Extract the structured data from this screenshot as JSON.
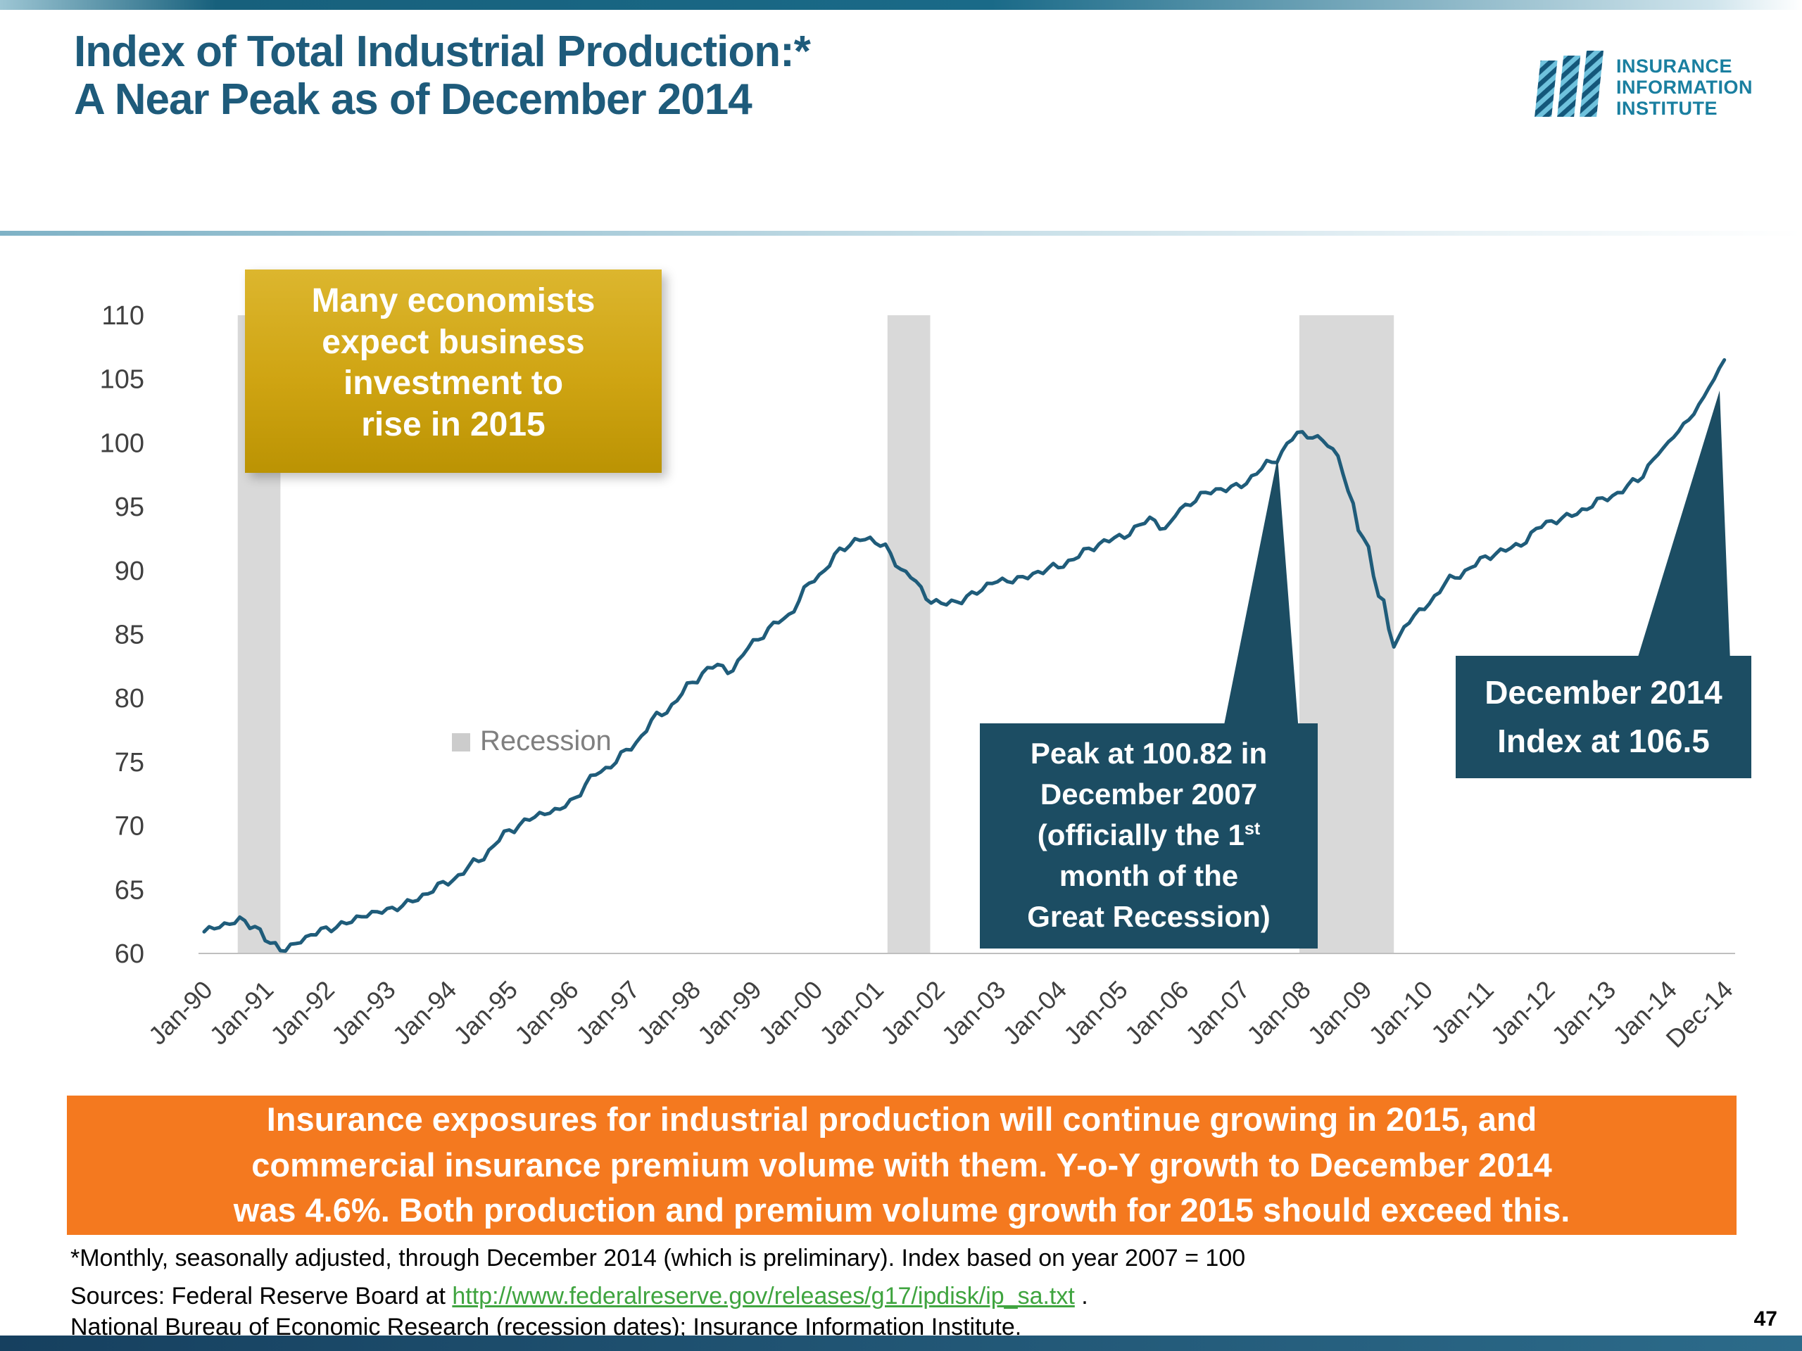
{
  "slide": {
    "title_line1": "Index of Total Industrial Production:*",
    "title_line2": "A Near Peak as of December 2014",
    "page_number": "47"
  },
  "logo": {
    "line1": "INSURANCE",
    "line2": "INFORMATION",
    "line3": "INSTITUTE"
  },
  "callouts": {
    "economists": {
      "lines": [
        "Many economists",
        "expect business",
        "investment to",
        "rise in 2015"
      ]
    },
    "peak": {
      "line1": "Peak at 100.82 in",
      "line2": "December 2007",
      "line3_pre": "(officially  the 1",
      "line3_sup": "st",
      "line4": "month of the",
      "line5": "Great Recession)"
    },
    "dec2014": {
      "line1": "December 2014",
      "line2": "Index at 106.5"
    }
  },
  "banner": {
    "lines": [
      "Insurance exposures for industrial production will continue growing in 2015, and",
      "commercial insurance premium volume with them. Y-o-Y growth to December 2014",
      "was 4.6%. Both production and premium volume growth for 2015 should exceed this."
    ]
  },
  "footnotes": {
    "note1": "*Monthly, seasonally adjusted, through December 2014 (which is preliminary). Index based on year 2007 = 100",
    "sources_prefix": "Sources: Federal Reserve Board at ",
    "sources_link": "http://www.federalreserve.gov/releases/g17/ipdisk/ip_sa.txt",
    "sources_suffix": " .",
    "note3": "National Bureau of Economic Research (recession dates); Insurance Information Institute."
  },
  "colors": {
    "title": "#1e5b7b",
    "line": "#1f5c7a",
    "navy_callout": "#1c4d63",
    "gold_callout": "#cfa412",
    "banner_orange": "#f4791f",
    "recession_gray": "#d9d9d9",
    "link_green": "#3fa43f"
  },
  "chart_data": {
    "type": "line",
    "title": "Index of Total Industrial Production (monthly, seasonally adjusted, 2007 = 100)",
    "xlabel": "",
    "ylabel": "",
    "ylim": [
      60,
      110
    ],
    "yticks": [
      60,
      65,
      70,
      75,
      80,
      85,
      90,
      95,
      100,
      105,
      110
    ],
    "grid": false,
    "x_range_years": [
      1990.0,
      2014.92
    ],
    "xtick_labels": [
      "Jan-90",
      "Jan-91",
      "Jan-92",
      "Jan-93",
      "Jan-94",
      "Jan-95",
      "Jan-96",
      "Jan-97",
      "Jan-98",
      "Jan-99",
      "Jan-00",
      "Jan-01",
      "Jan-02",
      "Jan-03",
      "Jan-04",
      "Jan-05",
      "Jan-06",
      "Jan-07",
      "Jan-08",
      "Jan-09",
      "Jan-10",
      "Jan-11",
      "Jan-12",
      "Jan-13",
      "Jan-14",
      "Dec-14"
    ],
    "xtick_years": [
      1990,
      1991,
      1992,
      1993,
      1994,
      1995,
      1996,
      1997,
      1998,
      1999,
      2000,
      2001,
      2002,
      2003,
      2004,
      2005,
      2006,
      2007,
      2008,
      2009,
      2010,
      2011,
      2012,
      2013,
      2014,
      2014.92
    ],
    "line_color": "#1f5c7a",
    "band_color": "#d9d9d9",
    "legend": {
      "label": "Recession",
      "color": "#cccccc",
      "position": "inside-left"
    },
    "recession_bands": [
      [
        1990.55,
        1991.25
      ],
      [
        2001.2,
        2001.9
      ],
      [
        2007.95,
        2009.5
      ]
    ],
    "key_points": {
      "peak": {
        "label": "Peak at 100.82 in December 2007",
        "year": 2007.92,
        "value": 100.82
      },
      "latest": {
        "label": "December 2014 Index at 106.5",
        "year": 2014.92,
        "value": 106.5
      }
    },
    "series": [
      {
        "name": "Index of Total Industrial Production",
        "points": [
          [
            1990.0,
            61.7
          ],
          [
            1990.25,
            62.2
          ],
          [
            1990.58,
            62.7
          ],
          [
            1990.83,
            61.9
          ],
          [
            1991.1,
            60.8
          ],
          [
            1991.3,
            60.4
          ],
          [
            1991.6,
            61.0
          ],
          [
            1992.0,
            61.9
          ],
          [
            1992.4,
            62.6
          ],
          [
            1992.75,
            63.0
          ],
          [
            1993.0,
            63.5
          ],
          [
            1993.5,
            64.2
          ],
          [
            1994.0,
            65.7
          ],
          [
            1994.5,
            67.2
          ],
          [
            1995.0,
            69.7
          ],
          [
            1995.4,
            70.6
          ],
          [
            1995.75,
            71.2
          ],
          [
            1996.0,
            72.0
          ],
          [
            1996.5,
            74.2
          ],
          [
            1997.0,
            76.2
          ],
          [
            1997.5,
            78.8
          ],
          [
            1998.0,
            81.2
          ],
          [
            1998.4,
            82.6
          ],
          [
            1998.6,
            82.2
          ],
          [
            1999.0,
            84.3
          ],
          [
            1999.5,
            86.3
          ],
          [
            2000.0,
            89.2
          ],
          [
            2000.5,
            91.9
          ],
          [
            2000.75,
            92.5
          ],
          [
            2001.1,
            92.0
          ],
          [
            2001.5,
            89.9
          ],
          [
            2001.95,
            87.4
          ],
          [
            2002.3,
            87.6
          ],
          [
            2002.7,
            88.3
          ],
          [
            2003.0,
            89.2
          ],
          [
            2003.6,
            89.6
          ],
          [
            2004.0,
            90.4
          ],
          [
            2004.5,
            91.6
          ],
          [
            2005.0,
            92.7
          ],
          [
            2005.5,
            93.9
          ],
          [
            2005.75,
            93.2
          ],
          [
            2006.0,
            95.0
          ],
          [
            2006.5,
            96.1
          ],
          [
            2007.0,
            96.8
          ],
          [
            2007.5,
            98.4
          ],
          [
            2007.92,
            100.82
          ],
          [
            2008.3,
            100.2
          ],
          [
            2008.6,
            99.0
          ],
          [
            2008.75,
            96.2
          ],
          [
            2009.0,
            92.5
          ],
          [
            2009.3,
            87.6
          ],
          [
            2009.5,
            84.2
          ],
          [
            2009.75,
            86.2
          ],
          [
            2010.0,
            87.1
          ],
          [
            2010.5,
            89.6
          ],
          [
            2011.0,
            90.9
          ],
          [
            2011.5,
            92.0
          ],
          [
            2012.0,
            93.6
          ],
          [
            2012.5,
            94.6
          ],
          [
            2013.0,
            95.6
          ],
          [
            2013.5,
            97.2
          ],
          [
            2013.9,
            99.3
          ],
          [
            2014.1,
            100.7
          ],
          [
            2014.4,
            102.3
          ],
          [
            2014.7,
            104.4
          ],
          [
            2014.92,
            106.5
          ]
        ]
      }
    ]
  }
}
